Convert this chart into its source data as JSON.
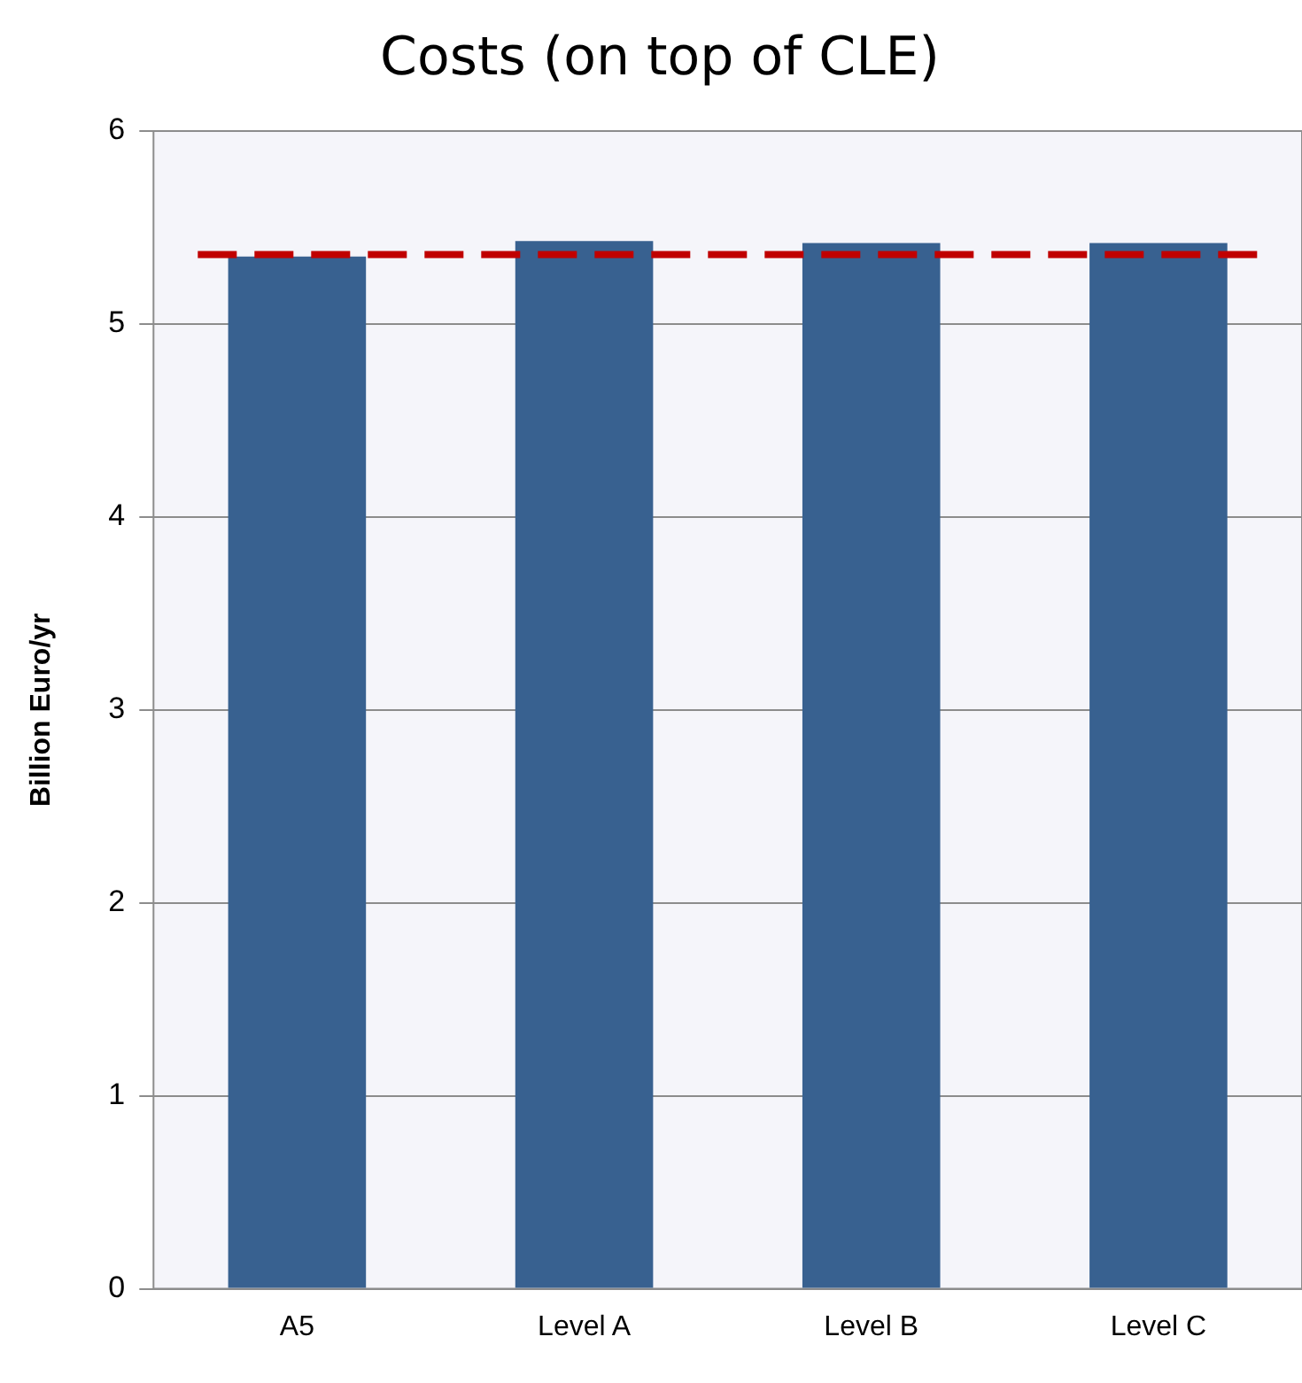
{
  "chart_data": {
    "type": "bar",
    "title": "Costs (on top of CLE)",
    "ylabel": "Billion Euro/yr",
    "categories": [
      "A5",
      "Level A",
      "Level B",
      "Level C"
    ],
    "values": [
      5.35,
      5.43,
      5.42,
      5.42
    ],
    "color": "#386190",
    "ylim": [
      0,
      6
    ],
    "yticks": [
      0,
      1,
      2,
      3,
      4,
      5,
      6
    ],
    "grid": "y",
    "legend": false,
    "ref_lines": [
      {
        "axis": "y",
        "value": 5.36,
        "color": "#c00000",
        "line_style": "dashed"
      }
    ]
  }
}
